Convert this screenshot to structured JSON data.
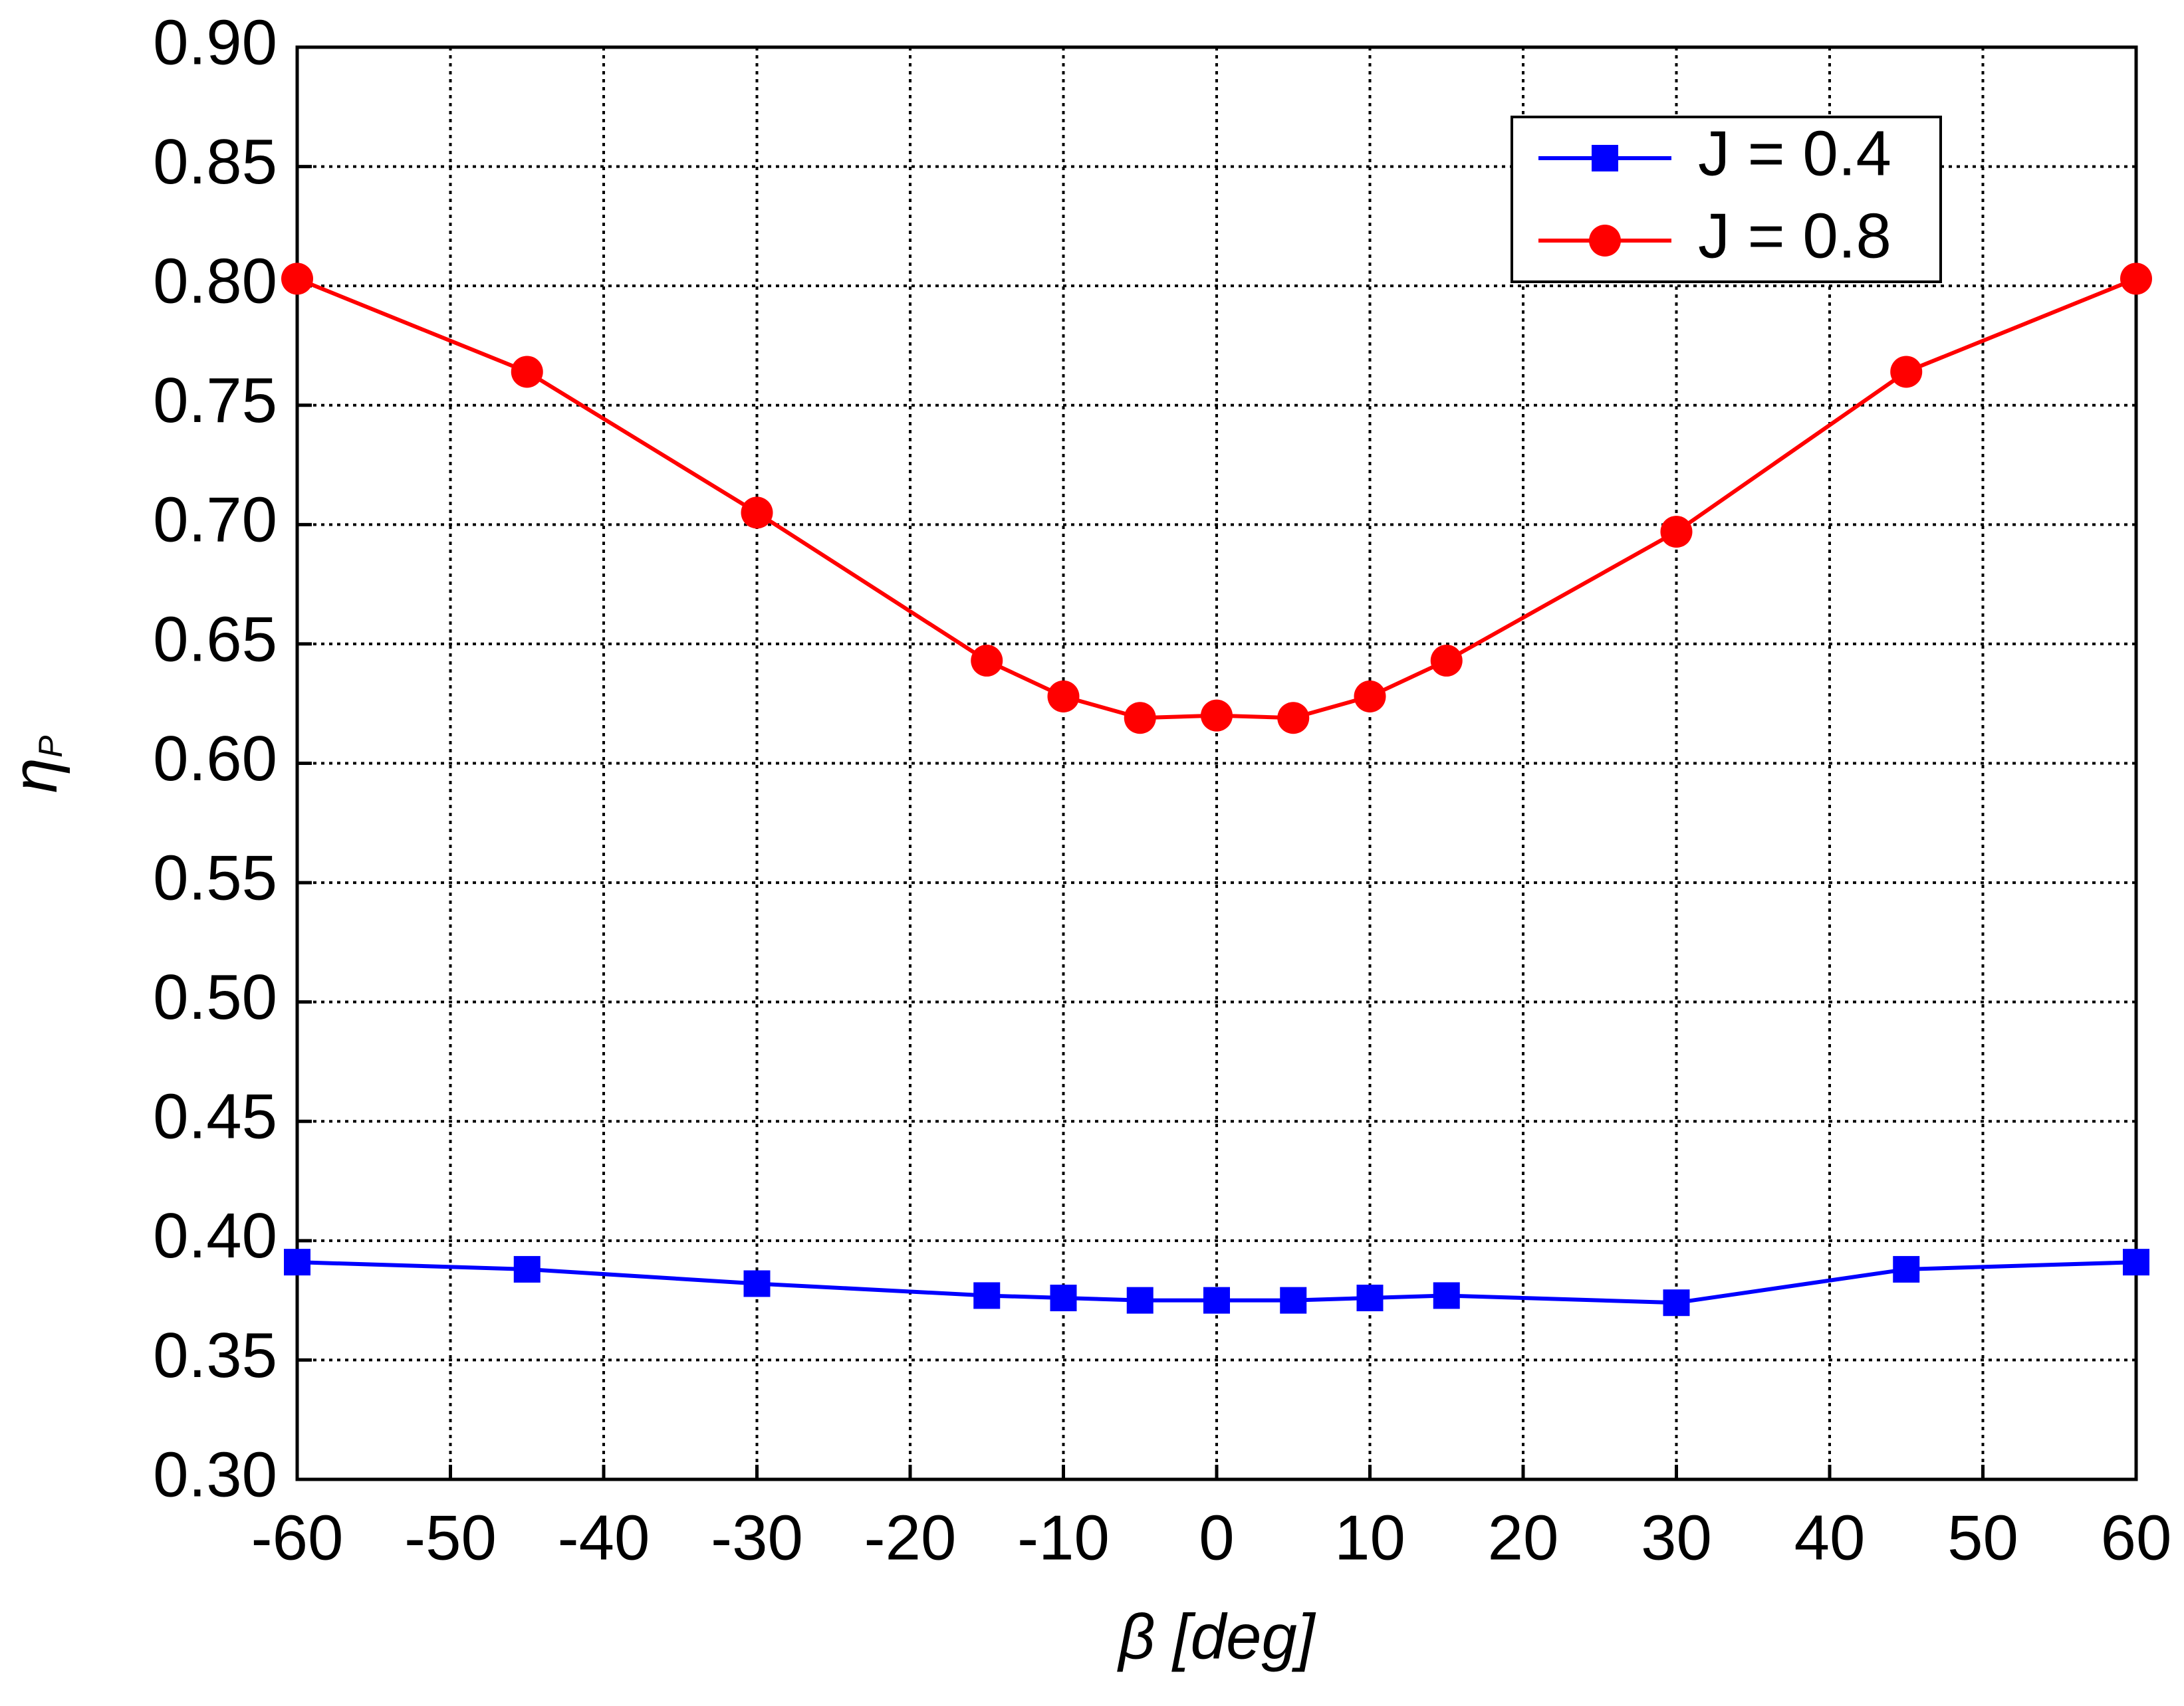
{
  "chart_data": {
    "type": "line",
    "x_label": "β [deg]",
    "y_label": {
      "symbol": "η",
      "subscript": "P"
    },
    "x": [
      -60,
      -45,
      -30,
      -15,
      -10,
      -5,
      0,
      5,
      10,
      15,
      30,
      45,
      60
    ],
    "series": [
      {
        "name": "J = 0.4",
        "color": "#0000ff",
        "marker": "square",
        "values": [
          0.391,
          0.388,
          0.382,
          0.377,
          0.376,
          0.375,
          0.375,
          0.375,
          0.376,
          0.377,
          0.374,
          0.388,
          0.391
        ]
      },
      {
        "name": "J = 0.8",
        "color": "#ff0000",
        "marker": "circle",
        "values": [
          0.803,
          0.764,
          0.705,
          0.643,
          0.628,
          0.619,
          0.62,
          0.619,
          0.628,
          0.643,
          0.697,
          0.764,
          0.803
        ]
      }
    ],
    "xlim": [
      -60,
      60
    ],
    "xticks": [
      -60,
      -50,
      -40,
      -30,
      -20,
      -10,
      0,
      10,
      20,
      30,
      40,
      50,
      60
    ],
    "ylim": [
      0.3,
      0.9
    ],
    "yticks": [
      {
        "value": 0.3,
        "label": "0.30"
      },
      {
        "value": 0.35,
        "label": "0.35"
      },
      {
        "value": 0.4,
        "label": "0.40"
      },
      {
        "value": 0.45,
        "label": "0.45"
      },
      {
        "value": 0.5,
        "label": "0.50"
      },
      {
        "value": 0.55,
        "label": "0.55"
      },
      {
        "value": 0.6,
        "label": "0.60"
      },
      {
        "value": 0.65,
        "label": "0.65"
      },
      {
        "value": 0.7,
        "label": "0.70"
      },
      {
        "value": 0.75,
        "label": "0.75"
      },
      {
        "value": 0.8,
        "label": "0.80"
      },
      {
        "value": 0.85,
        "label": "0.85"
      },
      {
        "value": 0.9,
        "label": "0.90"
      }
    ],
    "grid": true,
    "legend": "upper right"
  }
}
